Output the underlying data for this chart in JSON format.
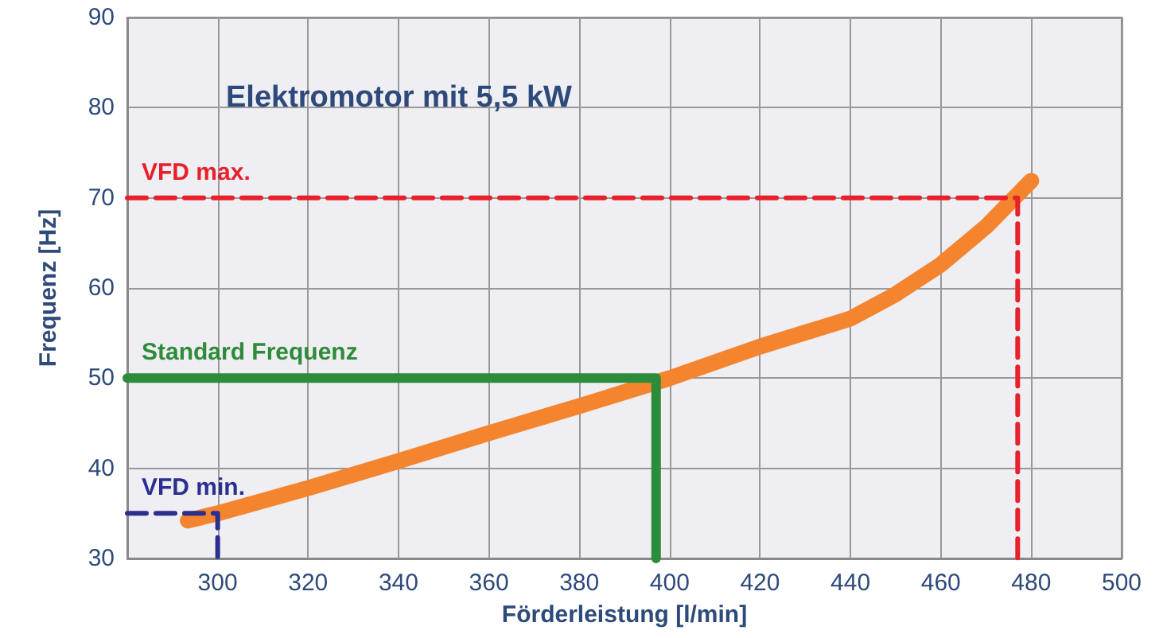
{
  "chart_data": {
    "type": "line",
    "title": "Elektromotor mit 5,5 kW",
    "xlabel": "Förderleistung [l/min]",
    "ylabel": "Frequenz [Hz]",
    "xlim": [
      280,
      500
    ],
    "xticks": [
      300,
      320,
      340,
      360,
      380,
      400,
      420,
      440,
      460,
      480,
      500
    ],
    "ylim": [
      30,
      90
    ],
    "yticks": [
      30,
      40,
      50,
      60,
      70,
      80,
      90
    ],
    "grid": true,
    "marker": "none",
    "series": [
      {
        "color": "#f5842f",
        "line_style": "solid",
        "x": [
          293.4,
          300,
          320,
          340,
          360,
          380,
          400,
          420,
          440,
          450,
          460,
          470,
          480
        ],
        "values": [
          34.2,
          35,
          37.8,
          40.8,
          43.9,
          46.9,
          50,
          53.5,
          56.6,
          59.3,
          62.6,
          66.8,
          71.9
        ]
      },
      {
        "name": "VFD max.",
        "color": "#e8202a",
        "line_style": "dashed",
        "x": [
          280,
          477,
          477
        ],
        "values": [
          70,
          70,
          30
        ]
      },
      {
        "name": "Standard Frequenz",
        "color": "#2e8b3a",
        "line_style": "solid",
        "x": [
          280,
          397,
          397
        ],
        "values": [
          50,
          50,
          30
        ]
      },
      {
        "name": "VFD min.",
        "color": "#2b2f8f",
        "line_style": "dashed",
        "x": [
          280,
          300,
          300
        ],
        "values": [
          35,
          35,
          30
        ]
      }
    ]
  }
}
